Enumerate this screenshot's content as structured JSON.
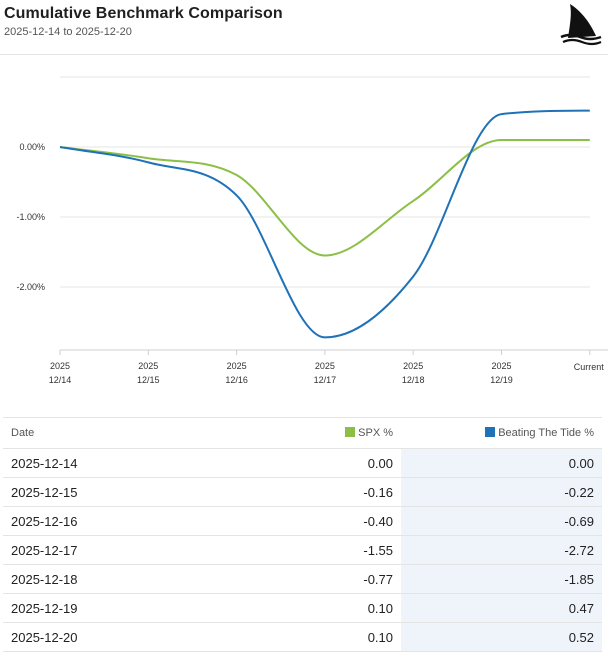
{
  "header": {
    "title": "Cumulative Benchmark Comparison",
    "subtitle": "2025-12-14 to 2025-12-20"
  },
  "colors": {
    "spx": "#8cbf45",
    "btt": "#1f72b8"
  },
  "icons": {
    "logo": "shark-fin-logo-icon"
  },
  "chart_data": {
    "type": "line",
    "title": "",
    "xlabel": "",
    "ylabel": "",
    "x_ticks": [
      {
        "top": "2025",
        "bottom": "12/14"
      },
      {
        "top": "2025",
        "bottom": "12/15"
      },
      {
        "top": "2025",
        "bottom": "12/16"
      },
      {
        "top": "2025",
        "bottom": "12/17"
      },
      {
        "top": "2025",
        "bottom": "12/18"
      },
      {
        "top": "2025",
        "bottom": "12/19"
      },
      {
        "top": "",
        "bottom": "Current"
      }
    ],
    "y_ticks": [
      "0.00%",
      "-1.00%",
      "-2.00%"
    ],
    "ylim": [
      -2.9,
      1.0
    ],
    "grid": true,
    "series": [
      {
        "name": "SPX %",
        "color": "#8cbf45",
        "values": [
          0.0,
          -0.16,
          -0.4,
          -1.55,
          -0.77,
          0.1,
          0.1
        ]
      },
      {
        "name": "Beating The Tide %",
        "color": "#1f72b8",
        "values": [
          0.0,
          -0.22,
          -0.69,
          -2.72,
          -1.85,
          0.47,
          0.52
        ]
      }
    ]
  },
  "table": {
    "headers": {
      "date": "Date",
      "spx": "SPX %",
      "btt": "Beating The Tide %"
    },
    "rows": [
      {
        "date": "2025-12-14",
        "spx": "0.00",
        "btt": "0.00"
      },
      {
        "date": "2025-12-15",
        "spx": "-0.16",
        "btt": "-0.22"
      },
      {
        "date": "2025-12-16",
        "spx": "-0.40",
        "btt": "-0.69"
      },
      {
        "date": "2025-12-17",
        "spx": "-1.55",
        "btt": "-2.72"
      },
      {
        "date": "2025-12-18",
        "spx": "-0.77",
        "btt": "-1.85"
      },
      {
        "date": "2025-12-19",
        "spx": "0.10",
        "btt": "0.47"
      },
      {
        "date": "2025-12-20",
        "spx": "0.10",
        "btt": "0.52"
      }
    ]
  }
}
